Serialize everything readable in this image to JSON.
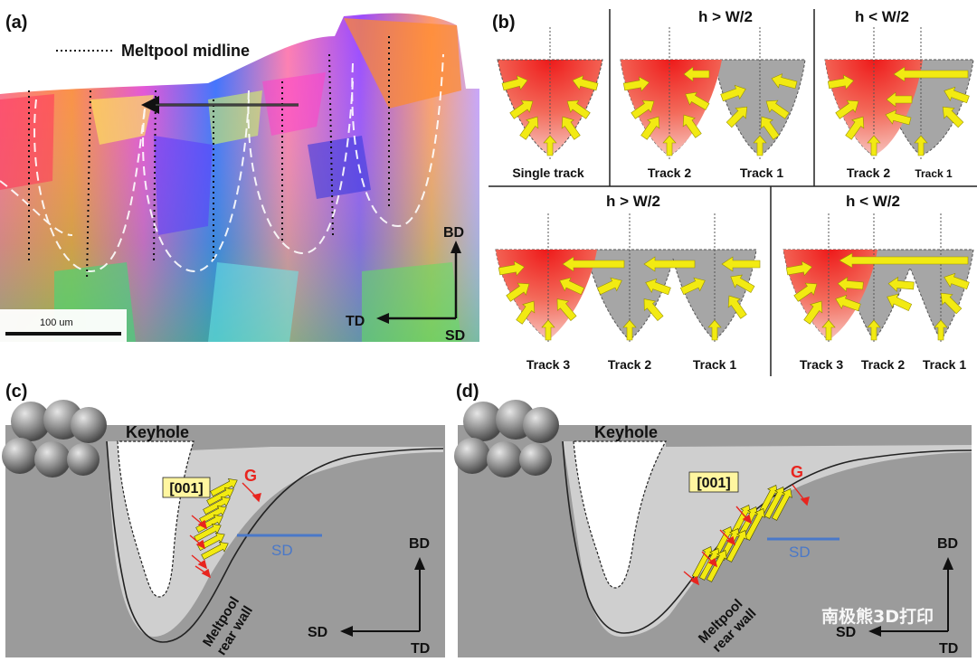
{
  "panel_a": {
    "letter": "(a)",
    "legend_label": "Meltpool midline",
    "scale_label": "100 um",
    "axis_up": "BD",
    "axis_left": "TD",
    "axis_origin": "SD"
  },
  "panel_b": {
    "letter": "(b)",
    "top_headers": [
      "h > W/2",
      "h < W/2"
    ],
    "bottom_headers": [
      "h > W/2",
      "h < W/2"
    ],
    "single_label": "Single track",
    "top_mid_labels": [
      "Track 2",
      "Track 1"
    ],
    "top_right_labels": [
      "Track 2",
      "Track 1"
    ],
    "bottom_left_labels": [
      "Track 3",
      "Track 2",
      "Track 1"
    ],
    "bottom_right_labels": [
      "Track 3",
      "Track 2",
      "Track 1"
    ]
  },
  "panel_c": {
    "letter": "(c)",
    "keyhole": "Keyhole",
    "direction": "[001]",
    "gradient": "G",
    "scan": "SD",
    "wall_line1": "Meltpool",
    "wall_line2": "rear wall",
    "axis_up": "BD",
    "axis_left": "SD",
    "axis_origin": "TD"
  },
  "panel_d": {
    "letter": "(d)",
    "keyhole": "Keyhole",
    "direction": "[001]",
    "gradient": "G",
    "scan": "SD",
    "wall_line1": "Meltpool",
    "wall_line2": "rear wall",
    "axis_up": "BD",
    "axis_left": "SD",
    "axis_origin": "TD"
  },
  "watermark": "南极熊3D打印",
  "colors": {
    "melt_red": "#e8251f",
    "arrow_yellow": "#f2ea12",
    "scan_blue": "#4a78c8",
    "grey_bg": "#9b9b9b",
    "light_grey": "#cfcfcf"
  }
}
